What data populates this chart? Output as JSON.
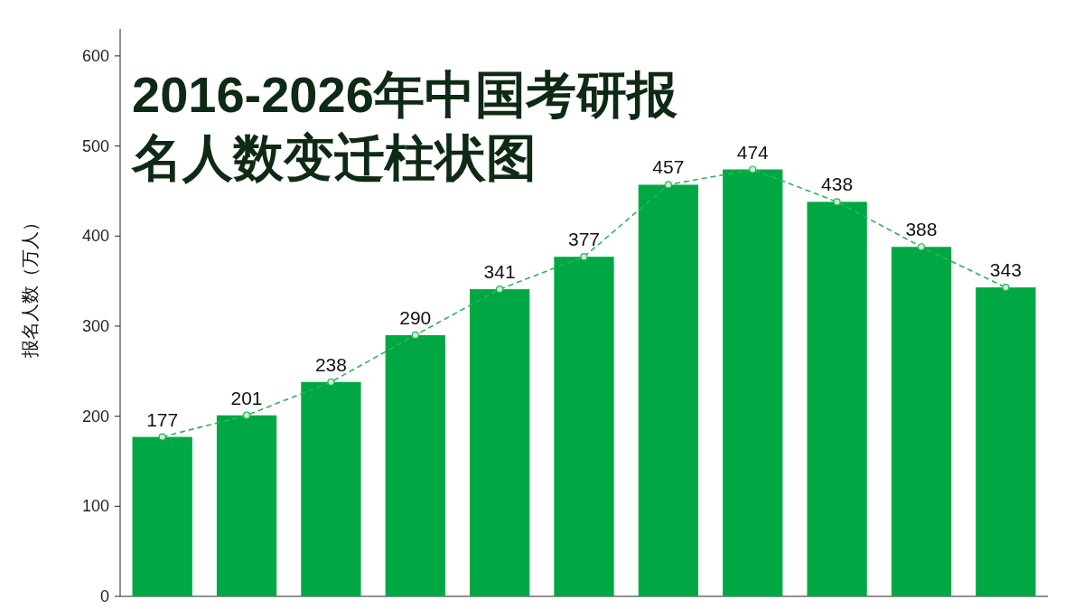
{
  "chart_data": {
    "type": "bar",
    "title": "2016-2026年中国考研报名人数变迁柱状图",
    "ylabel": "报名人数（万人）",
    "categories": [
      null,
      null,
      null,
      null,
      null,
      null,
      null,
      null,
      null,
      null,
      null
    ],
    "series": [
      {
        "color": "#00a843",
        "values": [
          177,
          201,
          238,
          290,
          341,
          377,
          457,
          474,
          438,
          388,
          343
        ]
      },
      {
        "type": "line",
        "color": "#2eb35a",
        "line_style": "dashed",
        "marker": "circle",
        "values": [
          177,
          201,
          238,
          290,
          341,
          377,
          457,
          474,
          438,
          388,
          343
        ],
        "value_labels": [
          "177",
          "201",
          "238",
          "290",
          "341",
          "377",
          "457",
          "474",
          "438",
          "388",
          "343"
        ]
      }
    ],
    "ylim": [
      0,
      630
    ],
    "yticks": [
      0,
      100,
      200,
      300,
      400,
      500,
      600
    ]
  }
}
